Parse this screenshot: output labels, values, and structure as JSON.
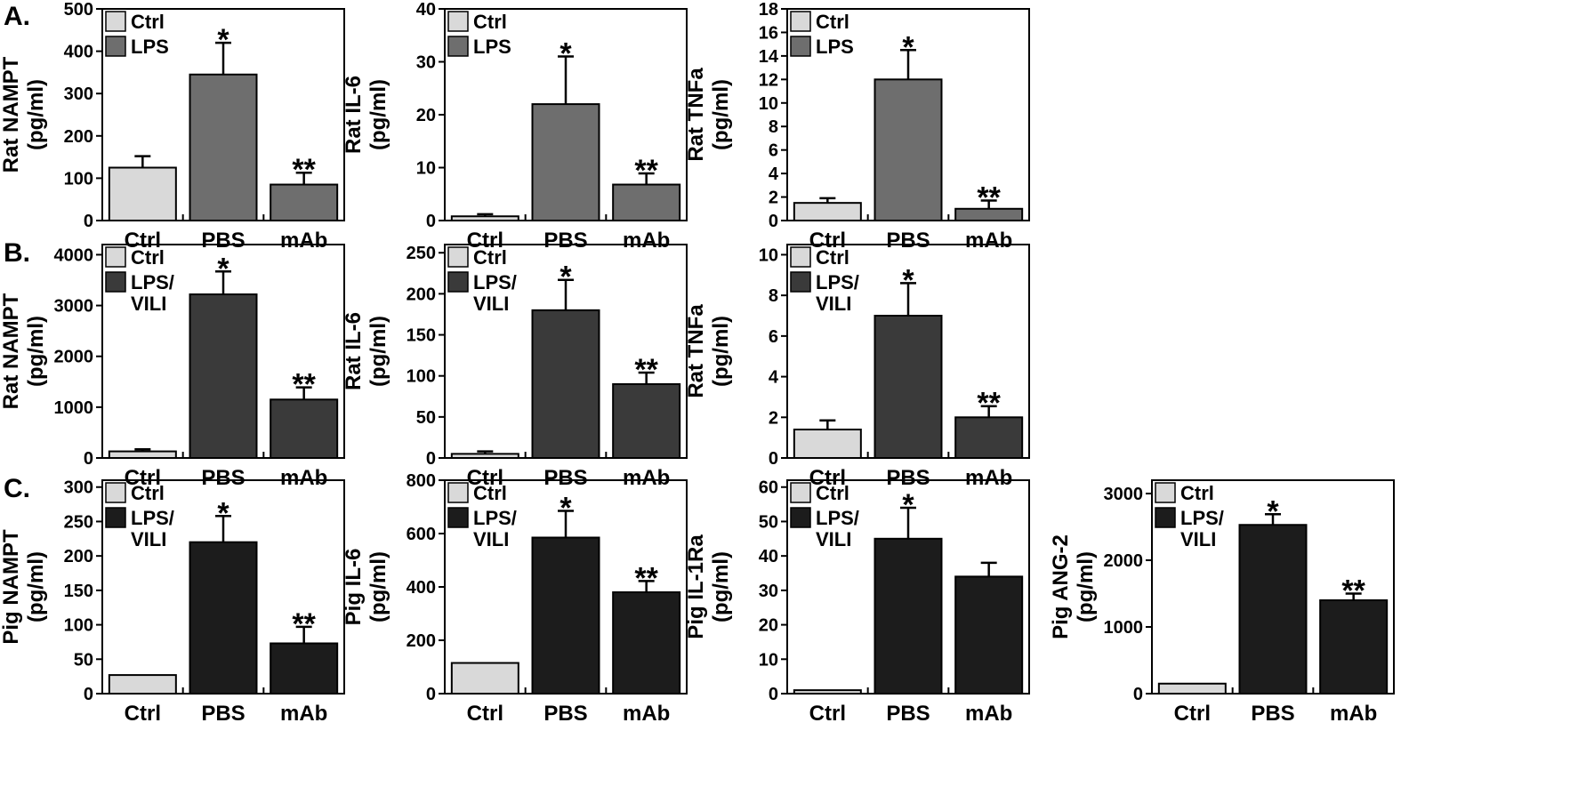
{
  "figure": {
    "row_labels": [
      "A.",
      "B.",
      "C."
    ],
    "colors": {
      "ctrl": "#d9d9d9",
      "row_a": "#6e6e6e",
      "row_b": "#3a3a3a",
      "row_c": "#1c1c1c"
    }
  },
  "chart_data": [
    {
      "type": "bar",
      "row": "A.",
      "title": "",
      "ylabel": "Rat NAMPT",
      "yunit": "(pg/ml)",
      "ylim": [
        0,
        500
      ],
      "yticks": [
        0,
        100,
        200,
        300,
        400,
        500
      ],
      "categories": [
        "Ctrl",
        "PBS",
        "mAb"
      ],
      "values": [
        125,
        345,
        85
      ],
      "errors": [
        27,
        75,
        28
      ],
      "annotations": [
        "",
        "*",
        "**"
      ],
      "legend": [
        "Ctrl",
        "LPS"
      ],
      "legend_position": "top-left"
    },
    {
      "type": "bar",
      "row": "A.",
      "title": "",
      "ylabel": "Rat IL-6",
      "yunit": "(pg/ml)",
      "ylim": [
        0,
        40
      ],
      "yticks": [
        0,
        10,
        20,
        30,
        40
      ],
      "categories": [
        "Ctrl",
        "PBS",
        "mAb"
      ],
      "values": [
        0.8,
        22,
        6.8
      ],
      "errors": [
        0.4,
        9,
        2.1
      ],
      "annotations": [
        "",
        "*",
        "**"
      ],
      "legend": [
        "Ctrl",
        "LPS"
      ],
      "legend_position": "top-left"
    },
    {
      "type": "bar",
      "row": "A.",
      "title": "",
      "ylabel": "Rat TNFa",
      "yunit": "(pg/ml)",
      "ylim": [
        0,
        18
      ],
      "yticks": [
        0,
        2,
        4,
        6,
        8,
        10,
        12,
        14,
        16,
        18
      ],
      "categories": [
        "Ctrl",
        "PBS",
        "mAb"
      ],
      "values": [
        1.5,
        12,
        1.0
      ],
      "errors": [
        0.4,
        2.5,
        0.7
      ],
      "annotations": [
        "",
        "*",
        "**"
      ],
      "legend": [
        "Ctrl",
        "LPS"
      ],
      "legend_position": "top-left"
    },
    {
      "type": "bar",
      "row": "B.",
      "title": "",
      "ylabel": "Rat NAMPT",
      "yunit": "(pg/ml)",
      "ylim": [
        0,
        4200
      ],
      "yticks": [
        0,
        1000,
        2000,
        3000,
        4000
      ],
      "categories": [
        "Ctrl",
        "PBS",
        "mAb"
      ],
      "values": [
        130,
        3220,
        1150
      ],
      "errors": [
        40,
        450,
        240
      ],
      "annotations": [
        "",
        "*",
        "**"
      ],
      "legend": [
        "Ctrl",
        "LPS/ VILI"
      ],
      "legend_position": "top-left"
    },
    {
      "type": "bar",
      "row": "B.",
      "title": "",
      "ylabel": "Rat IL-6",
      "yunit": "(pg/ml)",
      "ylim": [
        0,
        260
      ],
      "yticks": [
        0,
        50,
        100,
        150,
        200,
        250
      ],
      "categories": [
        "Ctrl",
        "PBS",
        "mAb"
      ],
      "values": [
        5,
        180,
        90
      ],
      "errors": [
        3,
        37,
        14
      ],
      "annotations": [
        "",
        "*",
        "**"
      ],
      "legend": [
        "Ctrl",
        "LPS/ VILI"
      ],
      "legend_position": "top-left"
    },
    {
      "type": "bar",
      "row": "B.",
      "title": "",
      "ylabel": "Rat TNFa",
      "yunit": "(pg/ml)",
      "ylim": [
        0,
        10.5
      ],
      "yticks": [
        0,
        2,
        4,
        6,
        8,
        10
      ],
      "categories": [
        "Ctrl",
        "PBS",
        "mAb"
      ],
      "values": [
        1.4,
        7.0,
        2.0
      ],
      "errors": [
        0.45,
        1.6,
        0.55
      ],
      "annotations": [
        "",
        "*",
        "**"
      ],
      "legend": [
        "Ctrl",
        "LPS/ VILI"
      ],
      "legend_position": "top-left"
    },
    {
      "type": "bar",
      "row": "C.",
      "title": "",
      "ylabel": "Pig NAMPT",
      "yunit": "(pg/ml)",
      "ylim": [
        0,
        310
      ],
      "yticks": [
        0,
        50,
        100,
        150,
        200,
        250,
        300
      ],
      "categories": [
        "Ctrl",
        "PBS",
        "mAb"
      ],
      "values": [
        27,
        220,
        73
      ],
      "errors": [
        0,
        38,
        24
      ],
      "annotations": [
        "",
        "*",
        "**"
      ],
      "legend": [
        "Ctrl",
        "LPS/ VILI"
      ],
      "legend_position": "top-left"
    },
    {
      "type": "bar",
      "row": "C.",
      "title": "",
      "ylabel": "Pig IL-6",
      "yunit": "(pg/ml)",
      "ylim": [
        0,
        800
      ],
      "yticks": [
        0,
        200,
        400,
        600,
        800
      ],
      "categories": [
        "Ctrl",
        "PBS",
        "mAb"
      ],
      "values": [
        115,
        585,
        380
      ],
      "errors": [
        0,
        100,
        42
      ],
      "annotations": [
        "",
        "*",
        "**"
      ],
      "legend": [
        "Ctrl",
        "LPS/ VILI"
      ],
      "legend_position": "top-left"
    },
    {
      "type": "bar",
      "row": "C.",
      "title": "",
      "ylabel": "Pig IL-1Ra",
      "yunit": "(pg/ml)",
      "ylim": [
        0,
        62
      ],
      "yticks": [
        0,
        10,
        20,
        30,
        40,
        50,
        60
      ],
      "categories": [
        "Ctrl",
        "PBS",
        "mAb"
      ],
      "values": [
        1,
        45,
        34
      ],
      "errors": [
        0,
        9,
        4
      ],
      "annotations": [
        "",
        "*",
        ""
      ],
      "legend": [
        "Ctrl",
        "LPS/ VILI"
      ],
      "legend_position": "top-left"
    },
    {
      "type": "bar",
      "row": "C.",
      "title": "",
      "ylabel": "Pig ANG-2",
      "yunit": "(pg/ml)",
      "ylim": [
        0,
        3200
      ],
      "yticks": [
        0,
        1000,
        2000,
        3000
      ],
      "categories": [
        "Ctrl",
        "PBS",
        "mAb"
      ],
      "values": [
        150,
        2530,
        1400
      ],
      "errors": [
        0,
        160,
        100
      ],
      "annotations": [
        "",
        "*",
        "**"
      ],
      "legend": [
        "Ctrl",
        "LPS/ VILI"
      ],
      "legend_position": "top-left"
    }
  ]
}
